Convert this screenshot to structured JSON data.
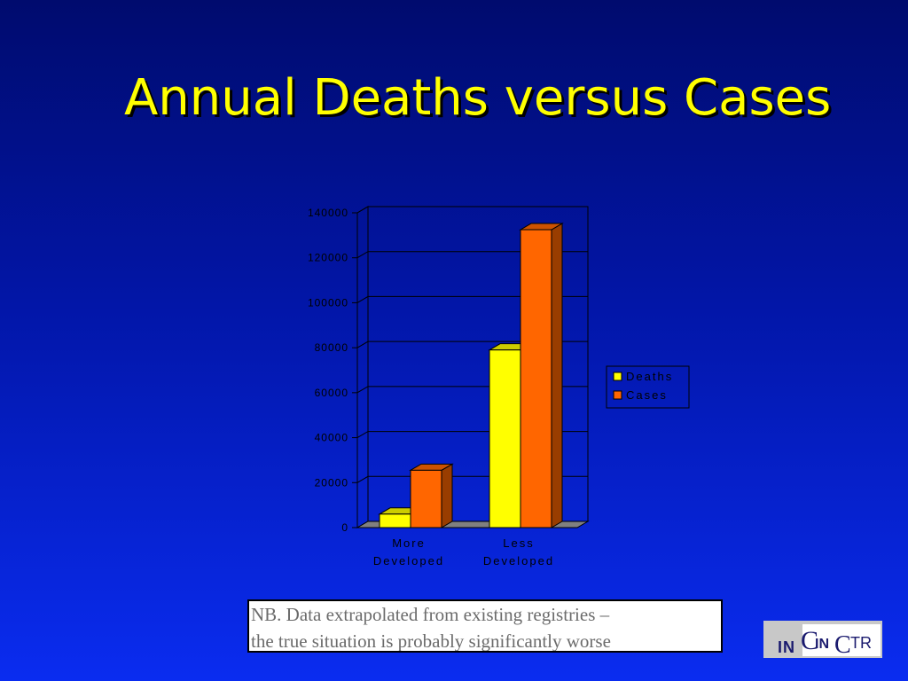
{
  "title": "Annual Deaths versus Cases",
  "note": {
    "line1": "NB. Data extrapolated from existing registries –",
    "line2": "the true situation is probably significantly worse"
  },
  "logo": {
    "text": "INCTR"
  },
  "colors": {
    "title": "#ffff00",
    "deaths": "#ffff00",
    "cases": "#ff6600"
  },
  "chart_data": {
    "type": "bar",
    "categories": [
      [
        "More",
        "Developed"
      ],
      [
        "Less",
        "Developed"
      ]
    ],
    "series": [
      {
        "name": "Deaths",
        "values": [
          6000,
          79000
        ]
      },
      {
        "name": "Cases",
        "values": [
          25500,
          132500
        ]
      }
    ],
    "yticks": [
      "0",
      "20000",
      "40000",
      "60000",
      "80000",
      "100000",
      "120000",
      "140000"
    ],
    "ylim": [
      0,
      140000
    ],
    "grid": true,
    "legend": "right",
    "three_d": true
  }
}
